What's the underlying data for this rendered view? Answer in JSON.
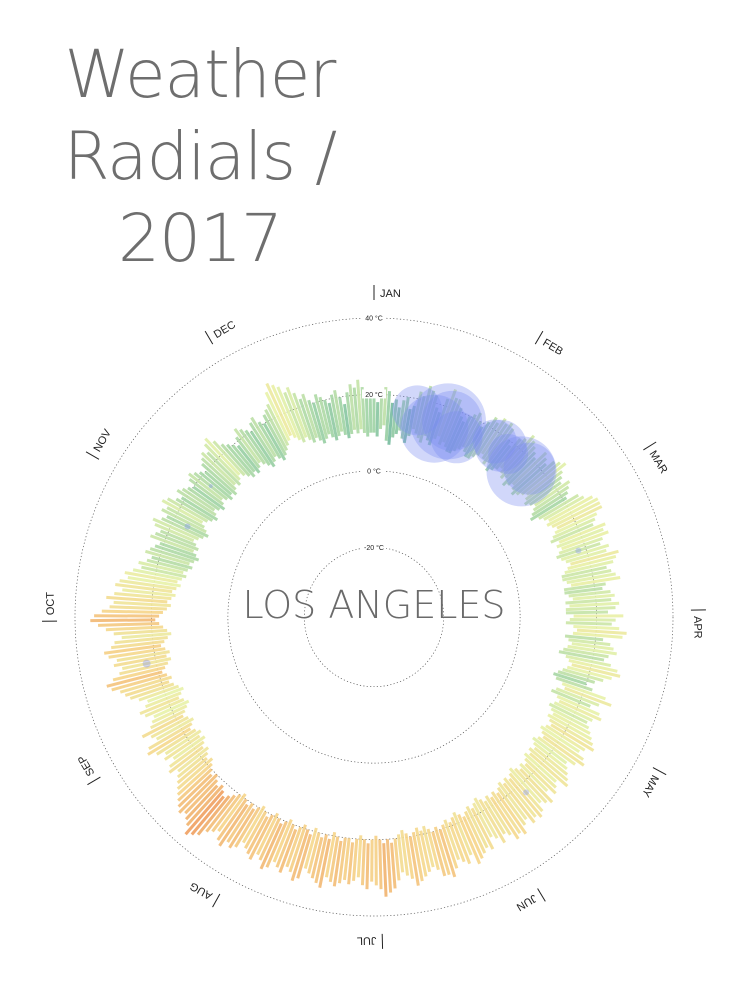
{
  "page": {
    "title_line1": "Weather",
    "title_line2": "Radials / 2017"
  },
  "chart_data": {
    "type": "radial-bar",
    "city": "LOS ANGELES",
    "rings": [
      {
        "value": -20,
        "label": "-20 °C"
      },
      {
        "value": 0,
        "label": "0 °C"
      },
      {
        "value": 20,
        "label": "20 °C"
      },
      {
        "value": 40,
        "label": "40 °C"
      }
    ],
    "axis_range": [
      -33,
      40
    ],
    "months": [
      "JAN",
      "FEB",
      "MAR",
      "APR",
      "MAY",
      "JUN",
      "JUL",
      "AUG",
      "SEP",
      "OCT",
      "NOV",
      "DEC"
    ],
    "month_start_days": [
      1,
      32,
      60,
      91,
      121,
      152,
      182,
      213,
      244,
      274,
      305,
      335
    ],
    "days_in_year": 365,
    "color_scale": {
      "stops": [
        5,
        10,
        15,
        20,
        25,
        30,
        35
      ],
      "colors": [
        "#1f6f8b",
        "#4ea39a",
        "#9fd3a4",
        "#e8f2a8",
        "#f6d58a",
        "#ee9a5b",
        "#b83245"
      ]
    },
    "rain_color": "#7c8cf0",
    "daily_temps": [
      [
        10,
        20
      ],
      [
        9,
        18
      ],
      [
        11,
        21
      ],
      [
        12,
        22
      ],
      [
        8,
        21
      ],
      [
        7,
        18
      ],
      [
        9,
        19
      ],
      [
        10,
        17
      ],
      [
        11,
        19
      ],
      [
        9,
        20
      ],
      [
        8,
        17
      ],
      [
        10,
        18
      ],
      [
        12,
        22
      ],
      [
        11,
        21
      ],
      [
        10,
        24
      ],
      [
        9,
        23
      ],
      [
        11,
        22
      ],
      [
        10,
        19
      ],
      [
        9,
        18
      ],
      [
        11,
        22
      ],
      [
        12,
        25
      ],
      [
        10,
        23
      ],
      [
        11,
        23
      ],
      [
        10,
        21
      ],
      [
        9,
        19
      ],
      [
        9,
        18
      ],
      [
        10,
        20
      ],
      [
        11,
        21
      ],
      [
        12,
        22
      ],
      [
        11,
        20
      ],
      [
        10,
        19
      ],
      [
        10,
        21
      ],
      [
        11,
        23
      ],
      [
        12,
        22
      ],
      [
        13,
        24
      ],
      [
        12,
        23
      ],
      [
        11,
        24
      ],
      [
        12,
        23
      ],
      [
        10,
        20
      ],
      [
        11,
        19
      ],
      [
        12,
        22
      ],
      [
        13,
        23
      ],
      [
        12,
        25
      ],
      [
        11,
        24
      ],
      [
        12,
        23
      ],
      [
        10,
        22
      ],
      [
        11,
        21
      ],
      [
        12,
        24
      ],
      [
        11,
        23
      ],
      [
        10,
        22
      ],
      [
        11,
        24
      ],
      [
        12,
        25
      ],
      [
        13,
        26
      ],
      [
        12,
        24
      ],
      [
        11,
        23
      ],
      [
        12,
        22
      ],
      [
        13,
        24
      ],
      [
        12,
        23
      ],
      [
        11,
        22
      ],
      [
        10,
        21
      ],
      [
        12,
        24
      ],
      [
        13,
        25
      ],
      [
        14,
        27
      ],
      [
        13,
        28
      ],
      [
        14,
        28
      ],
      [
        15,
        28
      ],
      [
        14,
        26
      ],
      [
        13,
        25
      ],
      [
        12,
        24
      ],
      [
        14,
        27
      ],
      [
        13,
        26
      ],
      [
        14,
        27
      ],
      [
        13,
        25
      ],
      [
        12,
        24
      ],
      [
        13,
        26
      ],
      [
        14,
        25
      ],
      [
        15,
        28
      ],
      [
        14,
        27
      ],
      [
        13,
        26
      ],
      [
        12,
        24
      ],
      [
        12,
        25
      ],
      [
        13,
        26
      ],
      [
        14,
        27
      ],
      [
        12,
        23
      ],
      [
        12,
        22
      ],
      [
        13,
        24
      ],
      [
        14,
        25
      ],
      [
        12,
        24
      ],
      [
        13,
        26
      ],
      [
        12,
        25
      ],
      [
        12,
        23
      ],
      [
        14,
        27
      ],
      [
        13,
        25
      ],
      [
        12,
        24
      ],
      [
        14,
        26
      ],
      [
        15,
        28
      ],
      [
        14,
        27
      ],
      [
        12,
        22
      ],
      [
        13,
        24
      ],
      [
        14,
        25
      ],
      [
        13,
        26
      ],
      [
        12,
        24
      ],
      [
        11,
        23
      ],
      [
        13,
        25
      ],
      [
        14,
        27
      ],
      [
        15,
        28
      ],
      [
        14,
        26
      ],
      [
        13,
        24
      ],
      [
        12,
        22
      ],
      [
        11,
        20
      ],
      [
        12,
        22
      ],
      [
        14,
        26
      ],
      [
        15,
        28
      ],
      [
        13,
        25
      ],
      [
        12,
        23
      ],
      [
        14,
        26
      ],
      [
        15,
        27
      ],
      [
        14,
        25
      ],
      [
        13,
        24
      ],
      [
        14,
        25
      ],
      [
        15,
        26
      ],
      [
        14,
        27
      ],
      [
        15,
        28
      ],
      [
        16,
        29
      ],
      [
        15,
        27
      ],
      [
        14,
        26
      ],
      [
        15,
        28
      ],
      [
        16,
        29
      ],
      [
        15,
        27
      ],
      [
        14,
        25
      ],
      [
        15,
        26
      ],
      [
        16,
        27
      ],
      [
        15,
        28
      ],
      [
        16,
        29
      ],
      [
        15,
        26
      ],
      [
        16,
        27
      ],
      [
        17,
        28
      ],
      [
        16,
        26
      ],
      [
        17,
        29
      ],
      [
        16,
        28
      ],
      [
        15,
        27
      ],
      [
        16,
        29
      ],
      [
        17,
        30
      ],
      [
        16,
        29
      ],
      [
        17,
        30
      ],
      [
        16,
        28
      ],
      [
        17,
        29
      ],
      [
        18,
        31
      ],
      [
        17,
        30
      ],
      [
        18,
        31
      ],
      [
        17,
        29
      ],
      [
        18,
        28
      ],
      [
        17,
        30
      ],
      [
        16,
        28
      ],
      [
        17,
        27
      ],
      [
        18,
        30
      ],
      [
        17,
        29
      ],
      [
        18,
        30
      ],
      [
        19,
        31
      ],
      [
        18,
        32
      ],
      [
        17,
        29
      ],
      [
        18,
        31
      ],
      [
        19,
        30
      ],
      [
        18,
        29
      ],
      [
        19,
        31
      ],
      [
        20,
        33
      ],
      [
        19,
        32
      ],
      [
        20,
        32
      ],
      [
        19,
        30
      ],
      [
        18,
        29
      ],
      [
        19,
        30
      ],
      [
        18,
        31
      ],
      [
        19,
        32
      ],
      [
        20,
        33
      ],
      [
        19,
        31
      ],
      [
        18,
        30
      ],
      [
        19,
        29
      ],
      [
        20,
        31
      ],
      [
        21,
        33
      ],
      [
        20,
        34
      ],
      [
        21,
        35
      ],
      [
        20,
        33
      ],
      [
        19,
        32
      ],
      [
        20,
        31
      ],
      [
        21,
        33
      ],
      [
        20,
        32
      ],
      [
        19,
        30
      ],
      [
        20,
        31
      ],
      [
        21,
        32
      ],
      [
        20,
        31
      ],
      [
        20,
        32
      ],
      [
        21,
        33
      ],
      [
        20,
        32
      ],
      [
        19,
        31
      ],
      [
        21,
        34
      ],
      [
        20,
        33
      ],
      [
        21,
        32
      ],
      [
        20,
        31
      ],
      [
        19,
        30
      ],
      [
        21,
        33
      ],
      [
        20,
        34
      ],
      [
        19,
        32
      ],
      [
        20,
        31
      ],
      [
        21,
        33
      ],
      [
        20,
        32
      ],
      [
        19,
        31
      ],
      [
        20,
        33
      ],
      [
        21,
        34
      ],
      [
        20,
        32
      ],
      [
        19,
        31
      ],
      [
        20,
        33
      ],
      [
        21,
        32
      ],
      [
        20,
        31
      ],
      [
        19,
        30
      ],
      [
        20,
        32
      ],
      [
        21,
        33
      ],
      [
        20,
        32
      ],
      [
        21,
        34
      ],
      [
        20,
        33
      ],
      [
        19,
        31
      ],
      [
        20,
        32
      ],
      [
        21,
        33
      ],
      [
        22,
        35
      ],
      [
        23,
        36
      ],
      [
        22,
        37
      ],
      [
        21,
        35
      ],
      [
        22,
        34
      ],
      [
        21,
        33
      ],
      [
        20,
        34
      ],
      [
        21,
        33
      ],
      [
        20,
        32
      ],
      [
        19,
        31
      ],
      [
        18,
        30
      ],
      [
        19,
        29
      ],
      [
        18,
        28
      ],
      [
        17,
        27
      ],
      [
        18,
        29
      ],
      [
        17,
        28
      ],
      [
        16,
        26
      ],
      [
        17,
        28
      ],
      [
        16,
        27
      ],
      [
        17,
        29
      ],
      [
        18,
        31
      ],
      [
        17,
        30
      ],
      [
        16,
        27
      ],
      [
        17,
        28
      ],
      [
        18,
        30
      ],
      [
        17,
        27
      ],
      [
        16,
        26
      ],
      [
        15,
        25
      ],
      [
        16,
        27
      ],
      [
        17,
        28
      ],
      [
        16,
        26
      ],
      [
        15,
        25
      ],
      [
        16,
        27
      ],
      [
        17,
        29
      ],
      [
        18,
        30
      ],
      [
        17,
        31
      ],
      [
        18,
        33
      ],
      [
        19,
        34
      ],
      [
        18,
        32
      ],
      [
        17,
        30
      ],
      [
        16,
        29
      ],
      [
        17,
        31
      ],
      [
        16,
        30
      ],
      [
        17,
        32
      ],
      [
        18,
        33
      ],
      [
        17,
        31
      ],
      [
        16,
        30
      ],
      [
        15,
        28
      ],
      [
        16,
        30
      ],
      [
        17,
        32
      ],
      [
        18,
        34
      ],
      [
        19,
        36
      ],
      [
        18,
        35
      ],
      [
        17,
        33
      ],
      [
        16,
        31
      ],
      [
        15,
        30
      ],
      [
        16,
        32
      ],
      [
        15,
        30
      ],
      [
        14,
        28
      ],
      [
        15,
        30
      ],
      [
        14,
        29
      ],
      [
        13,
        27
      ],
      [
        14,
        28
      ],
      [
        13,
        26
      ],
      [
        12,
        24
      ],
      [
        13,
        25
      ],
      [
        12,
        23
      ],
      [
        11,
        22
      ],
      [
        12,
        24
      ],
      [
        11,
        23
      ],
      [
        10,
        22
      ],
      [
        11,
        21
      ],
      [
        12,
        24
      ],
      [
        11,
        23
      ],
      [
        12,
        22
      ],
      [
        13,
        24
      ],
      [
        12,
        25
      ],
      [
        11,
        23
      ],
      [
        10,
        22
      ],
      [
        11,
        24
      ],
      [
        12,
        23
      ],
      [
        13,
        25
      ],
      [
        12,
        24
      ],
      [
        11,
        22
      ],
      [
        10,
        21
      ],
      [
        11,
        23
      ],
      [
        12,
        22
      ],
      [
        11,
        21
      ],
      [
        10,
        20
      ],
      [
        11,
        22
      ],
      [
        12,
        23
      ],
      [
        11,
        22
      ],
      [
        10,
        21
      ],
      [
        11,
        20
      ],
      [
        10,
        22
      ],
      [
        11,
        23
      ],
      [
        12,
        24
      ],
      [
        11,
        23
      ],
      [
        12,
        25
      ],
      [
        13,
        26
      ],
      [
        12,
        24
      ],
      [
        11,
        22
      ],
      [
        10,
        21
      ],
      [
        11,
        20
      ],
      [
        10,
        19
      ],
      [
        11,
        21
      ],
      [
        12,
        23
      ],
      [
        11,
        22
      ],
      [
        10,
        21
      ],
      [
        9,
        20
      ],
      [
        10,
        22
      ],
      [
        11,
        23
      ],
      [
        10,
        21
      ],
      [
        9,
        20
      ],
      [
        10,
        22
      ],
      [
        11,
        23
      ],
      [
        12,
        24
      ],
      [
        13,
        27
      ],
      [
        14,
        29
      ],
      [
        13,
        28
      ],
      [
        12,
        27
      ],
      [
        11,
        25
      ],
      [
        12,
        26
      ],
      [
        11,
        24
      ],
      [
        10,
        22
      ],
      [
        11,
        23
      ],
      [
        10,
        21
      ],
      [
        9,
        20
      ],
      [
        10,
        22
      ],
      [
        11,
        21
      ],
      [
        10,
        20
      ],
      [
        9,
        19
      ],
      [
        10,
        21
      ],
      [
        11,
        22
      ],
      [
        10,
        20
      ],
      [
        9,
        18
      ],
      [
        10,
        21
      ],
      [
        11,
        23
      ],
      [
        10,
        22
      ],
      [
        11,
        24
      ],
      [
        10,
        22
      ],
      [
        9,
        21
      ],
      [
        10,
        20
      ]
    ],
    "rain": [
      {
        "day": 12,
        "size": 25
      },
      {
        "day": 18,
        "size": 34
      },
      {
        "day": 21,
        "size": 38
      },
      {
        "day": 22,
        "size": 30
      },
      {
        "day": 25,
        "size": 26
      },
      {
        "day": 35,
        "size": 22
      },
      {
        "day": 37,
        "size": 26
      },
      {
        "day": 40,
        "size": 20
      },
      {
        "day": 46,
        "size": 35
      },
      {
        "day": 47,
        "size": 26
      },
      {
        "day": 73,
        "size": 3
      },
      {
        "day": 141,
        "size": 3
      },
      {
        "day": 262,
        "size": 4
      },
      {
        "day": 300,
        "size": 3
      },
      {
        "day": 313,
        "size": 2
      }
    ]
  }
}
